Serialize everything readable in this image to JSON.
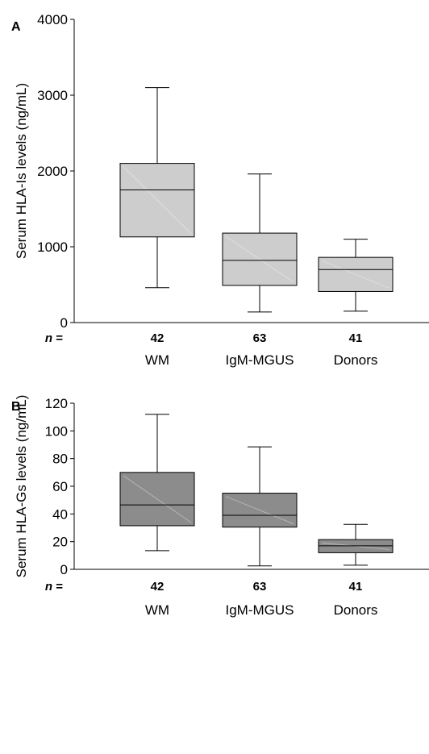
{
  "chart_data": [
    {
      "panel_label": "A",
      "type": "box",
      "ylabel": "Serum HLA-Is levels (ng/mL)",
      "ylim": [
        0,
        4000
      ],
      "yticks": [
        0,
        1000,
        2000,
        3000,
        4000
      ],
      "n_prefix": "n =",
      "fill_color": "#cdcdcd",
      "categories": [
        "WM",
        "IgM-MGUS",
        "Donors"
      ],
      "n": [
        "42",
        "63",
        "41"
      ],
      "boxes": [
        {
          "min": 460,
          "q1": 1130,
          "median": 1750,
          "q3": 2100,
          "max": 3100
        },
        {
          "min": 140,
          "q1": 490,
          "median": 820,
          "q3": 1180,
          "max": 1960
        },
        {
          "min": 150,
          "q1": 410,
          "median": 700,
          "q3": 860,
          "max": 1100
        }
      ]
    },
    {
      "panel_label": "B",
      "type": "box",
      "ylabel": "Serum HLA-Gs levels (ng/mL)",
      "ylim": [
        0,
        120
      ],
      "yticks": [
        0,
        20,
        40,
        60,
        80,
        100,
        120
      ],
      "n_prefix": "n =",
      "fill_color": "#8c8c8c",
      "categories": [
        "WM",
        "IgM-MGUS",
        "Donors"
      ],
      "n": [
        "42",
        "63",
        "41"
      ],
      "boxes": [
        {
          "min": 13.5,
          "q1": 31.5,
          "median": 46.5,
          "q3": 70,
          "max": 112
        },
        {
          "min": 2.5,
          "q1": 30.5,
          "median": 39,
          "q3": 55,
          "max": 88.5
        },
        {
          "min": 3,
          "q1": 12,
          "median": 17,
          "q3": 21.5,
          "max": 32.5
        }
      ]
    }
  ]
}
